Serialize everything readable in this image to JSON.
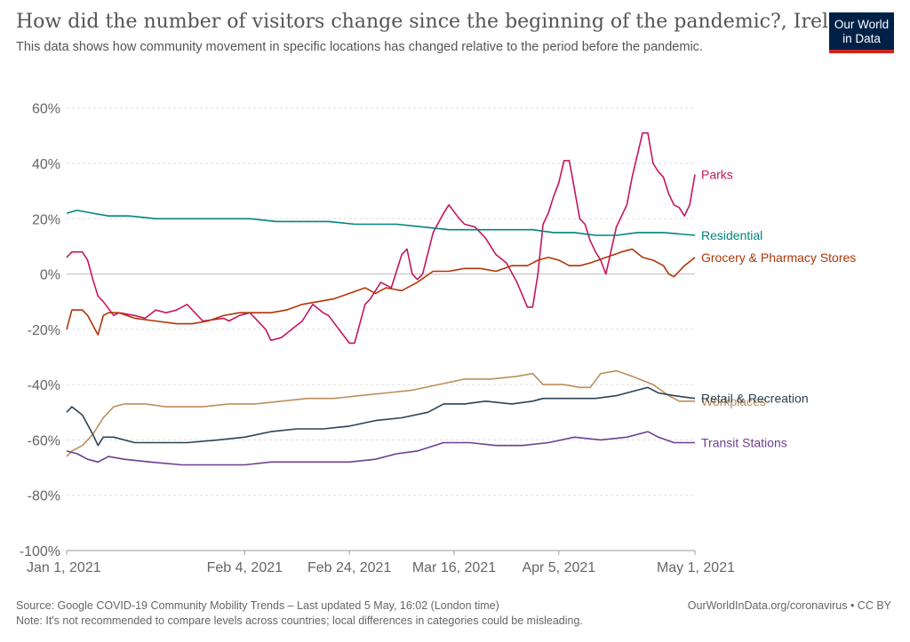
{
  "title": "How did the number of visitors change since the beginning of the pandemic?, Ireland",
  "subtitle": "This data shows how community movement in specific locations has changed relative to the period before the pandemic.",
  "logo": {
    "line1": "Our World",
    "line2": "in Data",
    "bg_color": "#002147",
    "accent_color": "#ce261e"
  },
  "footer": {
    "source": "Source: Google COVID-19 Community Mobility Trends – Last updated 5 May, 16:02 (London time)",
    "note": "Note: It's not recommended to compare levels across countries; local differences in categories could be misleading.",
    "credit": "OurWorldInData.org/coronavirus • CC BY"
  },
  "chart_data": {
    "type": "line",
    "x_start": "2021-01-01",
    "x_end": "2021-05-01",
    "ylim": [
      -100,
      75
    ],
    "y_ticks": [
      -100,
      -80,
      -60,
      -40,
      -20,
      0,
      20,
      40,
      60
    ],
    "y_tick_labels": [
      "-100%",
      "-80%",
      "-60%",
      "-40%",
      "-20%",
      "0%",
      "20%",
      "40%",
      "60%"
    ],
    "x_ticks": [
      "2021-01-01",
      "2021-02-04",
      "2021-02-24",
      "2021-03-16",
      "2021-04-05",
      "2021-05-01"
    ],
    "x_tick_labels": [
      "Jan 1, 2021",
      "Feb 4, 2021",
      "Feb 24, 2021",
      "Mar 16, 2021",
      "Apr 5, 2021",
      "May 1, 2021"
    ],
    "grid": true,
    "legend": "right-end labels",
    "series": [
      {
        "name": "Parks",
        "color": "#c4155f",
        "points": [
          [
            "2021-01-01",
            6
          ],
          [
            "2021-01-02",
            8
          ],
          [
            "2021-01-04",
            8
          ],
          [
            "2021-01-05",
            5
          ],
          [
            "2021-01-06",
            -2
          ],
          [
            "2021-01-07",
            -8
          ],
          [
            "2021-01-08",
            -10
          ],
          [
            "2021-01-10",
            -15
          ],
          [
            "2021-01-11",
            -14
          ],
          [
            "2021-01-14",
            -15
          ],
          [
            "2021-01-16",
            -16
          ],
          [
            "2021-01-18",
            -13
          ],
          [
            "2021-01-20",
            -14
          ],
          [
            "2021-01-22",
            -13
          ],
          [
            "2021-01-24",
            -11
          ],
          [
            "2021-01-27",
            -17
          ],
          [
            "2021-01-31",
            -16
          ],
          [
            "2021-02-01",
            -17
          ],
          [
            "2021-02-03",
            -15
          ],
          [
            "2021-02-05",
            -14
          ],
          [
            "2021-02-08",
            -20
          ],
          [
            "2021-02-09",
            -24
          ],
          [
            "2021-02-11",
            -23
          ],
          [
            "2021-02-13",
            -20
          ],
          [
            "2021-02-15",
            -17
          ],
          [
            "2021-02-17",
            -11
          ],
          [
            "2021-02-19",
            -14
          ],
          [
            "2021-02-20",
            -15
          ],
          [
            "2021-02-22",
            -20
          ],
          [
            "2021-02-24",
            -25
          ],
          [
            "2021-02-25",
            -25
          ],
          [
            "2021-02-27",
            -11
          ],
          [
            "2021-02-28",
            -9
          ],
          [
            "2021-03-02",
            -3
          ],
          [
            "2021-03-04",
            -5
          ],
          [
            "2021-03-06",
            7
          ],
          [
            "2021-03-07",
            9
          ],
          [
            "2021-03-08",
            0
          ],
          [
            "2021-03-09",
            -2
          ],
          [
            "2021-03-10",
            0
          ],
          [
            "2021-03-12",
            15
          ],
          [
            "2021-03-14",
            22
          ],
          [
            "2021-03-15",
            25
          ],
          [
            "2021-03-17",
            20
          ],
          [
            "2021-03-18",
            18
          ],
          [
            "2021-03-20",
            17
          ],
          [
            "2021-03-22",
            13
          ],
          [
            "2021-03-24",
            7
          ],
          [
            "2021-03-26",
            4
          ],
          [
            "2021-03-28",
            -3
          ],
          [
            "2021-03-30",
            -12
          ],
          [
            "2021-03-31",
            -12
          ],
          [
            "2021-04-01",
            0
          ],
          [
            "2021-04-02",
            18
          ],
          [
            "2021-04-03",
            22
          ],
          [
            "2021-04-04",
            28
          ],
          [
            "2021-04-05",
            33
          ],
          [
            "2021-04-06",
            41
          ],
          [
            "2021-04-07",
            41
          ],
          [
            "2021-04-09",
            20
          ],
          [
            "2021-04-10",
            18
          ],
          [
            "2021-04-11",
            12
          ],
          [
            "2021-04-12",
            8
          ],
          [
            "2021-04-13",
            5
          ],
          [
            "2021-04-14",
            0
          ],
          [
            "2021-04-16",
            17
          ],
          [
            "2021-04-18",
            25
          ],
          [
            "2021-04-19",
            35
          ],
          [
            "2021-04-21",
            51
          ],
          [
            "2021-04-22",
            51
          ],
          [
            "2021-04-23",
            40
          ],
          [
            "2021-04-24",
            37
          ],
          [
            "2021-04-25",
            35
          ],
          [
            "2021-04-26",
            29
          ],
          [
            "2021-04-27",
            25
          ],
          [
            "2021-04-28",
            24
          ],
          [
            "2021-04-29",
            21
          ],
          [
            "2021-04-30",
            25
          ],
          [
            "2021-05-01",
            36
          ]
        ]
      },
      {
        "name": "Grocery & Pharmacy Stores",
        "color": "#b13507",
        "points": [
          [
            "2021-01-01",
            -20
          ],
          [
            "2021-01-02",
            -13
          ],
          [
            "2021-01-04",
            -13
          ],
          [
            "2021-01-05",
            -15
          ],
          [
            "2021-01-07",
            -22
          ],
          [
            "2021-01-08",
            -15
          ],
          [
            "2021-01-09",
            -14
          ],
          [
            "2021-01-11",
            -14
          ],
          [
            "2021-01-14",
            -16
          ],
          [
            "2021-01-18",
            -17
          ],
          [
            "2021-01-22",
            -18
          ],
          [
            "2021-01-25",
            -18
          ],
          [
            "2021-01-28",
            -17
          ],
          [
            "2021-01-31",
            -15
          ],
          [
            "2021-02-03",
            -14
          ],
          [
            "2021-02-06",
            -14
          ],
          [
            "2021-02-09",
            -14
          ],
          [
            "2021-02-12",
            -13
          ],
          [
            "2021-02-15",
            -11
          ],
          [
            "2021-02-18",
            -10
          ],
          [
            "2021-02-21",
            -9
          ],
          [
            "2021-02-24",
            -7
          ],
          [
            "2021-02-27",
            -5
          ],
          [
            "2021-03-01",
            -7
          ],
          [
            "2021-03-03",
            -5
          ],
          [
            "2021-03-06",
            -6
          ],
          [
            "2021-03-09",
            -3
          ],
          [
            "2021-03-12",
            1
          ],
          [
            "2021-03-15",
            1
          ],
          [
            "2021-03-18",
            2
          ],
          [
            "2021-03-21",
            2
          ],
          [
            "2021-03-24",
            1
          ],
          [
            "2021-03-27",
            3
          ],
          [
            "2021-03-30",
            3
          ],
          [
            "2021-04-01",
            5
          ],
          [
            "2021-04-03",
            6
          ],
          [
            "2021-04-05",
            5
          ],
          [
            "2021-04-07",
            3
          ],
          [
            "2021-04-09",
            3
          ],
          [
            "2021-04-11",
            4
          ],
          [
            "2021-04-14",
            6
          ],
          [
            "2021-04-17",
            8
          ],
          [
            "2021-04-19",
            9
          ],
          [
            "2021-04-21",
            6
          ],
          [
            "2021-04-23",
            5
          ],
          [
            "2021-04-25",
            3
          ],
          [
            "2021-04-26",
            0
          ],
          [
            "2021-04-27",
            -1
          ],
          [
            "2021-04-29",
            3
          ],
          [
            "2021-05-01",
            6
          ]
        ]
      },
      {
        "name": "Residential",
        "color": "#00847e",
        "points": [
          [
            "2021-01-01",
            22
          ],
          [
            "2021-01-03",
            23
          ],
          [
            "2021-01-06",
            22
          ],
          [
            "2021-01-09",
            21
          ],
          [
            "2021-01-13",
            21
          ],
          [
            "2021-01-18",
            20
          ],
          [
            "2021-01-24",
            20
          ],
          [
            "2021-01-31",
            20
          ],
          [
            "2021-02-05",
            20
          ],
          [
            "2021-02-10",
            19
          ],
          [
            "2021-02-15",
            19
          ],
          [
            "2021-02-20",
            19
          ],
          [
            "2021-02-25",
            18
          ],
          [
            "2021-03-01",
            18
          ],
          [
            "2021-03-05",
            18
          ],
          [
            "2021-03-10",
            17
          ],
          [
            "2021-03-15",
            16
          ],
          [
            "2021-03-20",
            16
          ],
          [
            "2021-03-25",
            16
          ],
          [
            "2021-03-31",
            16
          ],
          [
            "2021-04-04",
            15
          ],
          [
            "2021-04-08",
            15
          ],
          [
            "2021-04-12",
            14
          ],
          [
            "2021-04-16",
            14
          ],
          [
            "2021-04-20",
            15
          ],
          [
            "2021-04-25",
            15
          ],
          [
            "2021-05-01",
            14
          ]
        ]
      },
      {
        "name": "Workplaces",
        "color": "#bc8e5a",
        "points": [
          [
            "2021-01-01",
            -66
          ],
          [
            "2021-01-02",
            -64
          ],
          [
            "2021-01-04",
            -62
          ],
          [
            "2021-01-06",
            -58
          ],
          [
            "2021-01-08",
            -52
          ],
          [
            "2021-01-10",
            -48
          ],
          [
            "2021-01-12",
            -47
          ],
          [
            "2021-01-16",
            -47
          ],
          [
            "2021-01-20",
            -48
          ],
          [
            "2021-01-27",
            -48
          ],
          [
            "2021-02-01",
            -47
          ],
          [
            "2021-02-06",
            -47
          ],
          [
            "2021-02-11",
            -46
          ],
          [
            "2021-02-16",
            -45
          ],
          [
            "2021-02-21",
            -45
          ],
          [
            "2021-02-26",
            -44
          ],
          [
            "2021-03-03",
            -43
          ],
          [
            "2021-03-08",
            -42
          ],
          [
            "2021-03-13",
            -40
          ],
          [
            "2021-03-18",
            -38
          ],
          [
            "2021-03-23",
            -38
          ],
          [
            "2021-03-28",
            -37
          ],
          [
            "2021-03-31",
            -36
          ],
          [
            "2021-04-02",
            -40
          ],
          [
            "2021-04-06",
            -40
          ],
          [
            "2021-04-09",
            -41
          ],
          [
            "2021-04-11",
            -41
          ],
          [
            "2021-04-13",
            -36
          ],
          [
            "2021-04-16",
            -35
          ],
          [
            "2021-04-19",
            -37
          ],
          [
            "2021-04-23",
            -40
          ],
          [
            "2021-04-26",
            -44
          ],
          [
            "2021-04-28",
            -46
          ],
          [
            "2021-05-01",
            -46
          ]
        ]
      },
      {
        "name": "Retail & Recreation",
        "color": "#2d4253",
        "points": [
          [
            "2021-01-01",
            -50
          ],
          [
            "2021-01-02",
            -48
          ],
          [
            "2021-01-04",
            -51
          ],
          [
            "2021-01-06",
            -58
          ],
          [
            "2021-01-07",
            -62
          ],
          [
            "2021-01-08",
            -59
          ],
          [
            "2021-01-10",
            -59
          ],
          [
            "2021-01-14",
            -61
          ],
          [
            "2021-01-18",
            -61
          ],
          [
            "2021-01-24",
            -61
          ],
          [
            "2021-01-30",
            -60
          ],
          [
            "2021-02-04",
            -59
          ],
          [
            "2021-02-09",
            -57
          ],
          [
            "2021-02-14",
            -56
          ],
          [
            "2021-02-19",
            -56
          ],
          [
            "2021-02-24",
            -55
          ],
          [
            "2021-03-01",
            -53
          ],
          [
            "2021-03-06",
            -52
          ],
          [
            "2021-03-11",
            -50
          ],
          [
            "2021-03-14",
            -47
          ],
          [
            "2021-03-18",
            -47
          ],
          [
            "2021-03-22",
            -46
          ],
          [
            "2021-03-27",
            -47
          ],
          [
            "2021-03-31",
            -46
          ],
          [
            "2021-04-02",
            -45
          ],
          [
            "2021-04-07",
            -45
          ],
          [
            "2021-04-12",
            -45
          ],
          [
            "2021-04-16",
            -44
          ],
          [
            "2021-04-20",
            -42
          ],
          [
            "2021-04-22",
            -41
          ],
          [
            "2021-04-24",
            -43
          ],
          [
            "2021-04-27",
            -44
          ],
          [
            "2021-05-01",
            -45
          ]
        ]
      },
      {
        "name": "Transit Stations",
        "color": "#6d3e91",
        "points": [
          [
            "2021-01-01",
            -64
          ],
          [
            "2021-01-03",
            -65
          ],
          [
            "2021-01-05",
            -67
          ],
          [
            "2021-01-07",
            -68
          ],
          [
            "2021-01-09",
            -66
          ],
          [
            "2021-01-12",
            -67
          ],
          [
            "2021-01-17",
            -68
          ],
          [
            "2021-01-23",
            -69
          ],
          [
            "2021-01-30",
            -69
          ],
          [
            "2021-02-04",
            -69
          ],
          [
            "2021-02-09",
            -68
          ],
          [
            "2021-02-14",
            -68
          ],
          [
            "2021-02-19",
            -68
          ],
          [
            "2021-02-24",
            -68
          ],
          [
            "2021-03-01",
            -67
          ],
          [
            "2021-03-05",
            -65
          ],
          [
            "2021-03-09",
            -64
          ],
          [
            "2021-03-14",
            -61
          ],
          [
            "2021-03-19",
            -61
          ],
          [
            "2021-03-24",
            -62
          ],
          [
            "2021-03-29",
            -62
          ],
          [
            "2021-04-03",
            -61
          ],
          [
            "2021-04-08",
            -59
          ],
          [
            "2021-04-13",
            -60
          ],
          [
            "2021-04-18",
            -59
          ],
          [
            "2021-04-22",
            -57
          ],
          [
            "2021-04-24",
            -59
          ],
          [
            "2021-04-27",
            -61
          ],
          [
            "2021-05-01",
            -61
          ]
        ]
      }
    ]
  }
}
